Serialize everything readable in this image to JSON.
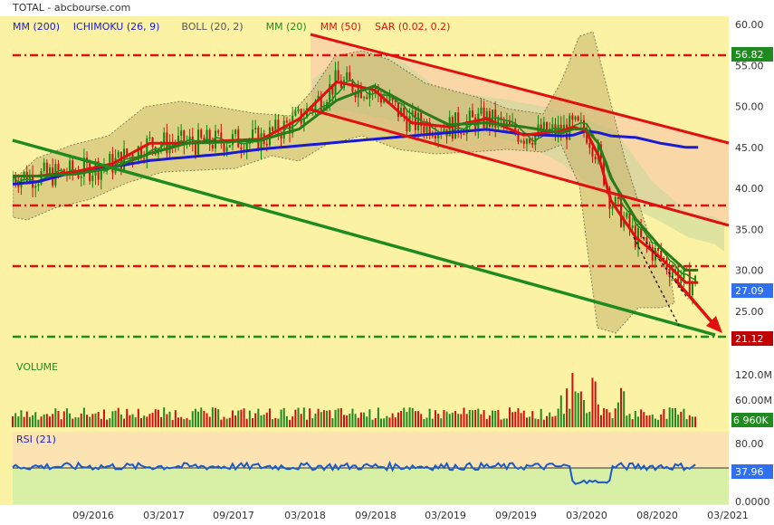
{
  "source": "TOTAL - abcbourse.com",
  "legend": [
    {
      "label": "MM (200)",
      "color": "#1a1ad0"
    },
    {
      "label": "ICHIMOKU (26, 9)",
      "color": "#1a1ad0"
    },
    {
      "label": "BOLL (20, 2)",
      "color": "#555555"
    },
    {
      "label": "MM (20)",
      "color": "#1f8a1f"
    },
    {
      "label": "MM (50)",
      "color": "#e01010"
    },
    {
      "label": "SAR (0.02, 0.2)",
      "color": "#e01010"
    }
  ],
  "colors": {
    "background": "#fbf2a4",
    "rsi_upper": "#fce3b2",
    "rsi_lower": "#d8efa6",
    "red": "#e01010",
    "green": "#1f8a1f",
    "blue": "#1a1ad0",
    "channel_fill": "#f8c8a8"
  },
  "price_axis": {
    "ticks": [
      "60.00",
      "55.00",
      "50.00",
      "45.00",
      "40.00",
      "35.00",
      "30.00",
      "25.00"
    ],
    "ylim": [
      20,
      61
    ]
  },
  "price_badges": {
    "resistance": "56.82",
    "last": "27.09",
    "support": "21.12"
  },
  "volume": {
    "title": "VOLUME",
    "ticks": [
      "120.0M",
      "60.00M"
    ],
    "last": "6 960K"
  },
  "rsi": {
    "title": "RSI (21)",
    "ticks": [
      "80.00",
      "0.0000"
    ],
    "last": "37.96"
  },
  "x_axis": [
    "09/2016",
    "03/2017",
    "09/2017",
    "03/2018",
    "09/2018",
    "03/2019",
    "09/2019",
    "03/2020",
    "08/2020",
    "03/2021"
  ],
  "chart_data": {
    "type": "line",
    "title": "TOTAL",
    "x": [
      "2016-04",
      "2016-06",
      "2016-09",
      "2016-12",
      "2017-03",
      "2017-06",
      "2017-09",
      "2017-12",
      "2018-03",
      "2018-06",
      "2018-09",
      "2018-12",
      "2019-03",
      "2019-06",
      "2019-09",
      "2019-12",
      "2020-01",
      "2020-02",
      "2020-03",
      "2020-04",
      "2020-06",
      "2020-08",
      "2020-10"
    ],
    "series": [
      {
        "name": "MM (200)",
        "values": [
          40.5,
          40.8,
          42.0,
          42.6,
          43.4,
          43.8,
          44.2,
          44.8,
          45.2,
          45.6,
          46.0,
          46.4,
          46.8,
          47.2,
          46.6,
          46.4,
          46.5,
          47.0,
          46.8,
          46.4,
          46.2,
          45.5,
          45.0
        ]
      },
      {
        "name": "MM (50)",
        "values": [
          41.5,
          41.5,
          42.0,
          43.0,
          45.5,
          45.5,
          45.8,
          46.0,
          48.5,
          53.0,
          52.0,
          48.0,
          47.5,
          48.5,
          46.5,
          47.0,
          47.5,
          47.0,
          44.0,
          38.5,
          34.0,
          31.5,
          28.5
        ]
      }
    ],
    "levels": {
      "resistance": 56.82,
      "last": 27.09,
      "support": 21.12,
      "dashed": [
        37.2,
        29.8
      ]
    },
    "trendlines": [
      {
        "name": "channel-top",
        "from": {
          "x": "2018-03",
          "y": 59.0
        },
        "to": {
          "x": "2020-12",
          "y": 45.0
        }
      },
      {
        "name": "channel-bottom",
        "from": {
          "x": "2018-03",
          "y": 50.5
        },
        "to": {
          "x": "2020-12",
          "y": 35.0
        }
      },
      {
        "name": "support-line",
        "from": {
          "x": "2016-04",
          "y": 45.8
        },
        "to": {
          "x": "2020-12",
          "y": 21.5
        }
      }
    ],
    "rsi_last": 37.96,
    "volume_last": "6 960K"
  }
}
